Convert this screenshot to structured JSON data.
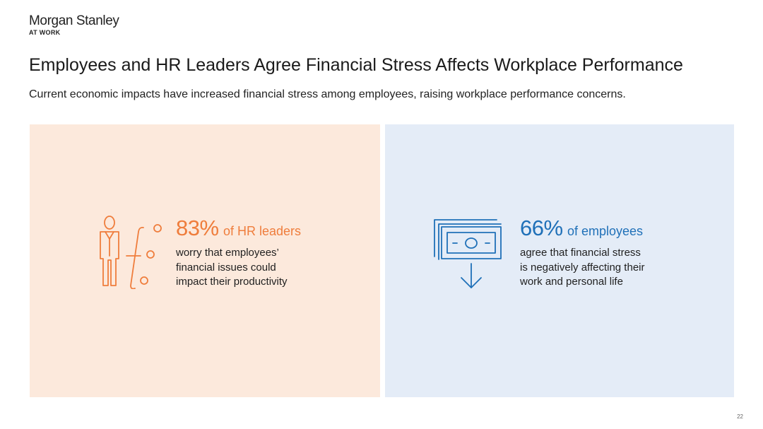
{
  "brand": {
    "name": "Morgan Stanley",
    "sub": "AT WORK"
  },
  "title": "Employees and HR Leaders Agree Financial Stress Affects Workplace Performance",
  "subtitle": "Current economic impacts have increased financial stress among employees, raising workplace performance concerns.",
  "panels": [
    {
      "icon": "person-thinking-icon",
      "percent": "83%",
      "of_label": "of HR leaders",
      "lines": [
        "worry that employees’",
        "financial issues could",
        "impact their productivity"
      ],
      "color": "#ef7d3c",
      "background": "#fce9dc"
    },
    {
      "icon": "money-down-icon",
      "percent": "66%",
      "of_label": "of employees",
      "lines": [
        "agree that financial stress",
        "is negatively affecting their",
        "work and personal life"
      ],
      "color": "#1f70b8",
      "background": "#e4ecf7"
    }
  ],
  "page_number": "22"
}
